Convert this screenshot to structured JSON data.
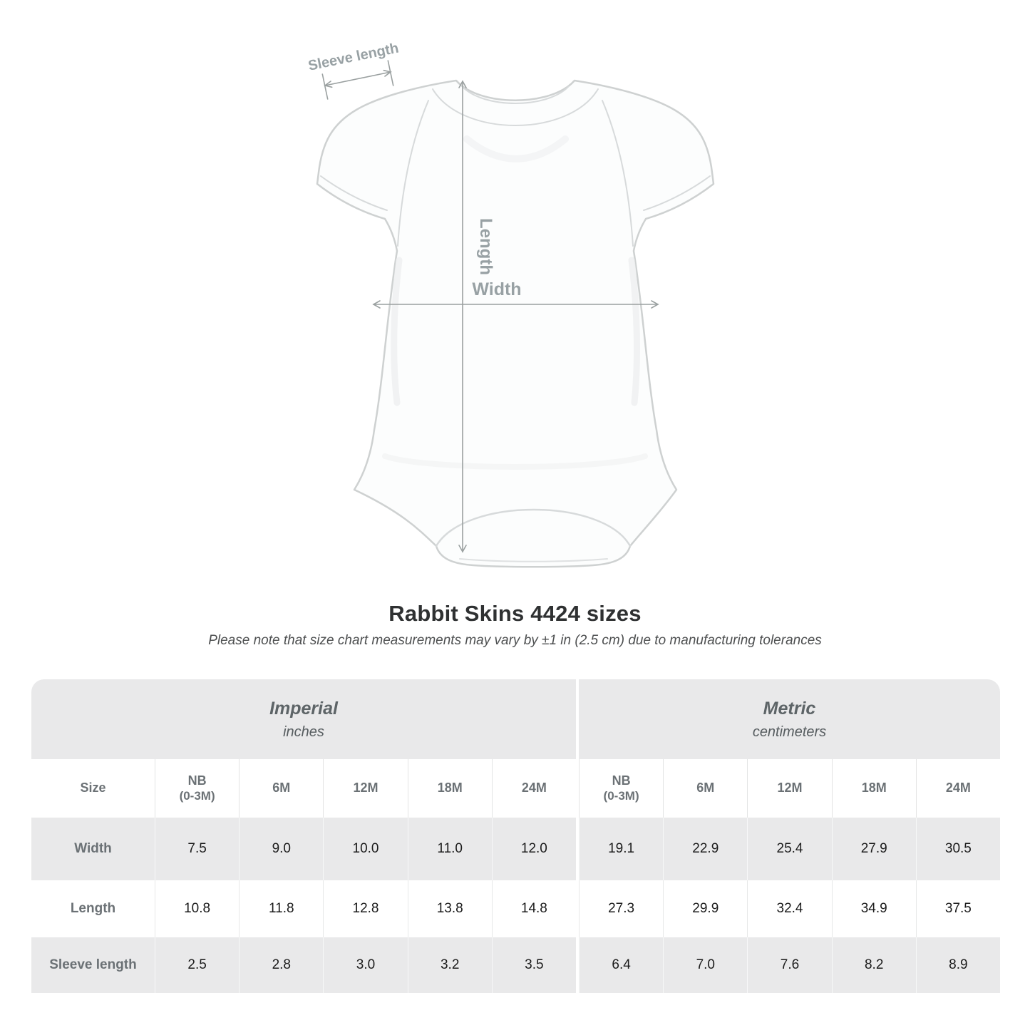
{
  "diagram": {
    "sleeve_label": "Sleeve length",
    "length_label": "Length",
    "width_label": "Width"
  },
  "heading": {
    "title": "Rabbit Skins 4424 sizes",
    "note": "Please note that size chart measurements may vary by ±1 in (2.5 cm) due to manufacturing tolerances"
  },
  "table": {
    "sections": [
      {
        "label": "Imperial",
        "unit": "inches"
      },
      {
        "label": "Metric",
        "unit": "centimeters"
      }
    ],
    "size_header": "Size",
    "columns": [
      {
        "label": "NB",
        "sub": "(0-3M)"
      },
      {
        "label": "6M"
      },
      {
        "label": "12M"
      },
      {
        "label": "18M"
      },
      {
        "label": "24M"
      },
      {
        "label": "NB",
        "sub": "(0-3M)"
      },
      {
        "label": "6M"
      },
      {
        "label": "12M"
      },
      {
        "label": "18M"
      },
      {
        "label": "24M"
      }
    ],
    "rows": [
      {
        "label": "Width",
        "values": [
          "7.5",
          "9.0",
          "10.0",
          "11.0",
          "12.0",
          "19.1",
          "22.9",
          "25.4",
          "27.9",
          "30.5"
        ]
      },
      {
        "label": "Length",
        "values": [
          "10.8",
          "11.8",
          "12.8",
          "13.8",
          "14.8",
          "27.3",
          "29.9",
          "32.4",
          "34.9",
          "37.5"
        ]
      },
      {
        "label": "Sleeve length",
        "values": [
          "2.5",
          "2.8",
          "3.0",
          "3.2",
          "3.5",
          "6.4",
          "7.0",
          "7.6",
          "8.2",
          "8.9"
        ]
      }
    ]
  },
  "colors": {
    "band_gray": "#e9e9ea",
    "row_gray": "#e9e9ea",
    "label_gray": "#6b7175",
    "value_dark": "#1b1b1b",
    "diagram_gray": "#98a1a4",
    "arrow_gray": "#9aa0a0",
    "garment_outline": "#ced1d1",
    "title_dark": "#2f3132"
  }
}
